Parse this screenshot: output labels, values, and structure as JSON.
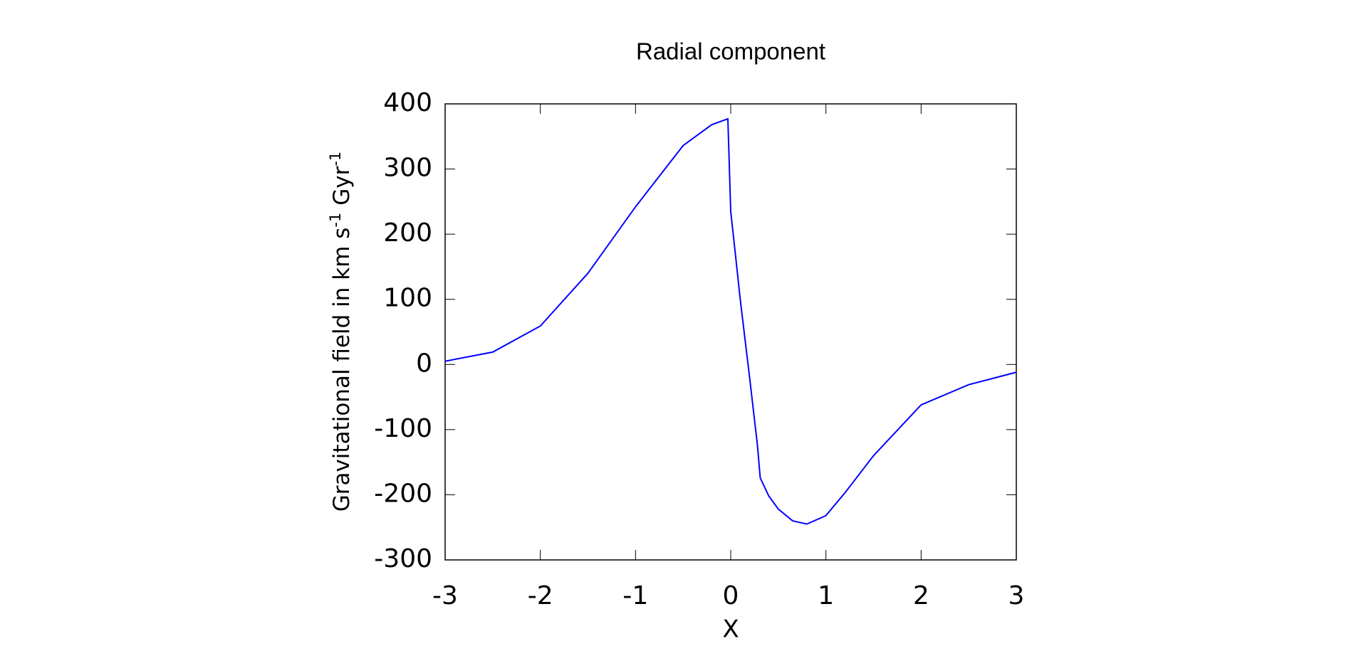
{
  "chart_data": {
    "type": "line",
    "title": "Radial component",
    "xlabel": "X",
    "ylabel_parts": [
      {
        "text": "Gravitational field in km s",
        "sup": false
      },
      {
        "text": "-1",
        "sup": true
      },
      {
        "text": " Gyr",
        "sup": false
      },
      {
        "text": "-1",
        "sup": true
      }
    ],
    "x": [
      -3,
      -2.5,
      -2,
      -1.5,
      -1,
      -0.5,
      -0.2,
      -0.03,
      0,
      0.05,
      0.1,
      0.2,
      0.28,
      0.31,
      0.4,
      0.5,
      0.65,
      0.8,
      1,
      1.2,
      1.5,
      2,
      2.5,
      3
    ],
    "series": [
      {
        "color": "#0000ff",
        "values": [
          5,
          19,
          59,
          140,
          242,
          336,
          368,
          377,
          235,
          168,
          100,
          -22,
          -123,
          -174,
          -202,
          -222,
          -240,
          -245,
          -232,
          -197,
          -140,
          -62,
          -31,
          -12
        ]
      }
    ],
    "xlim": [
      -3,
      3
    ],
    "xticks": [
      -3,
      -2,
      -1,
      0,
      1,
      2,
      3
    ],
    "ylim": [
      -300,
      400
    ],
    "yticks": [
      -300,
      -200,
      -100,
      0,
      100,
      200,
      300,
      400
    ]
  }
}
